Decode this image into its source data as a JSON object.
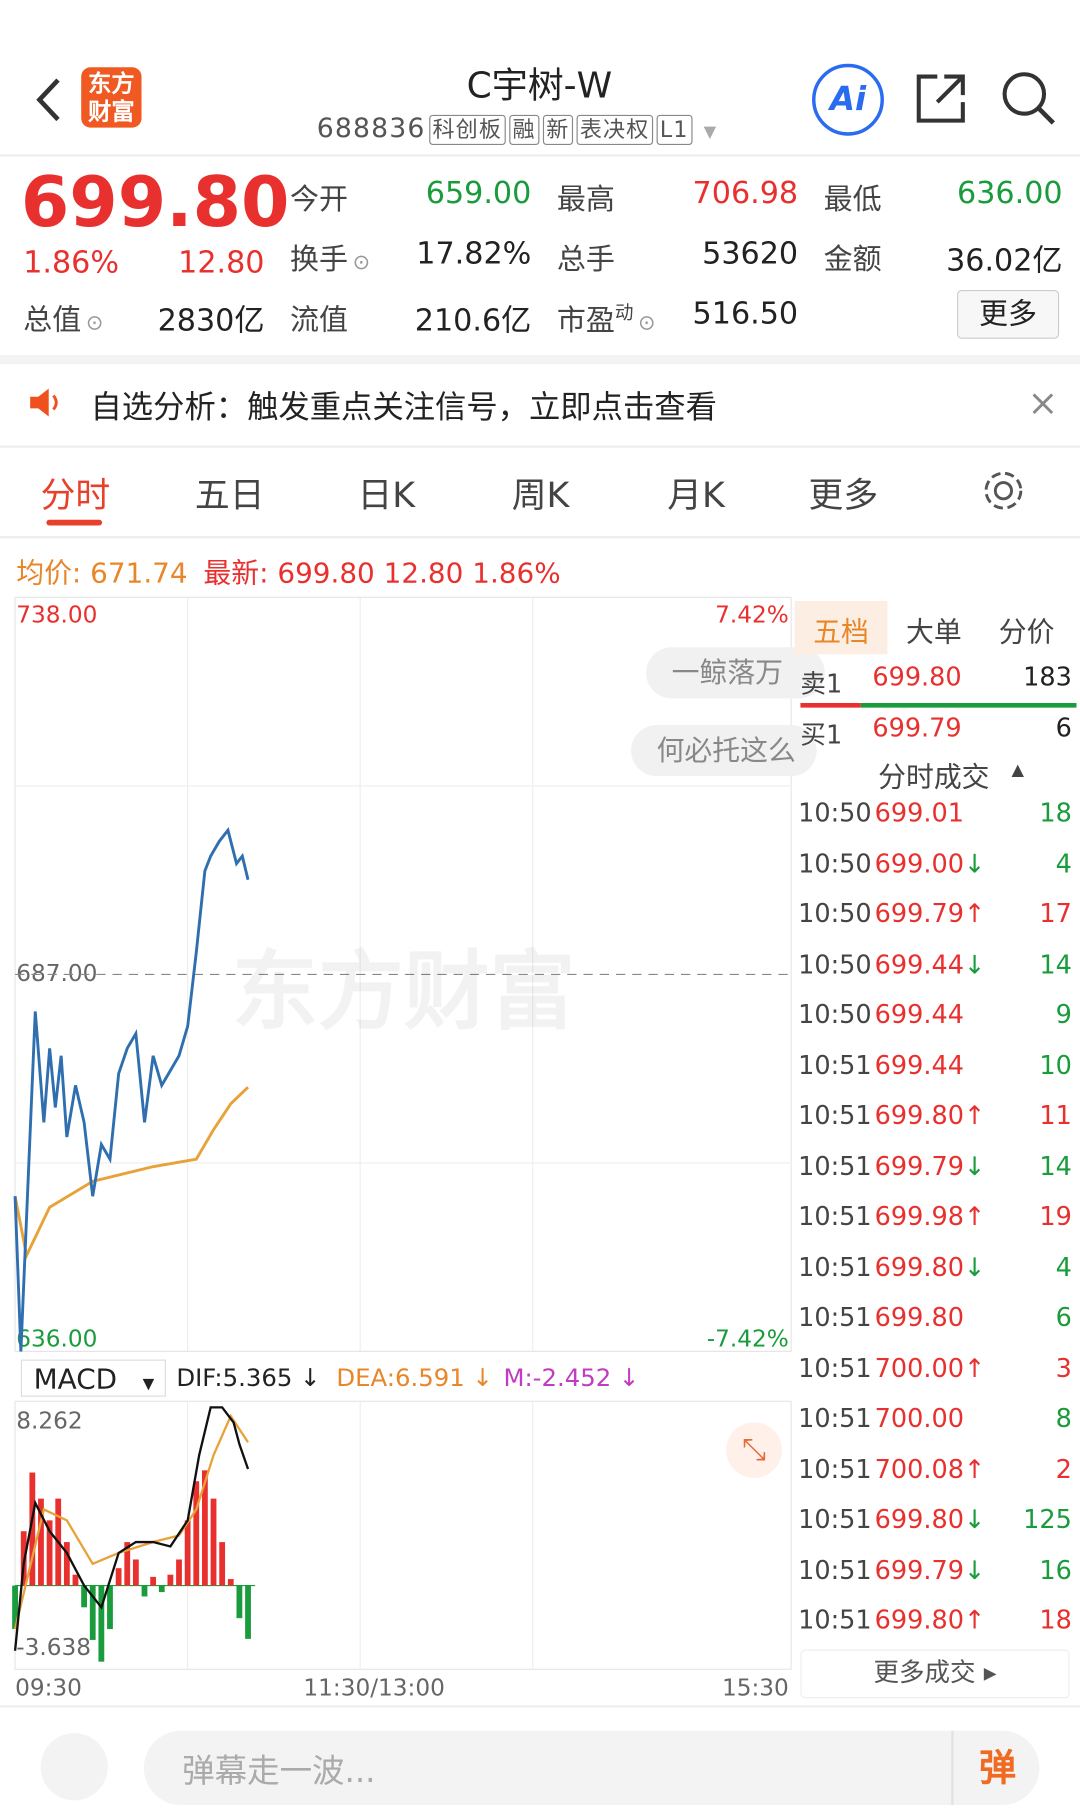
{
  "header": {
    "logo": "东方财富",
    "title": "C宇树-W",
    "code": "688836",
    "tags": [
      "科创板",
      "融",
      "新",
      "表决权",
      "L1"
    ],
    "ai": "Ai"
  },
  "quote": {
    "price": "699.80",
    "change_pct": "1.86%",
    "change": "12.80",
    "total_value_label": "总值",
    "total_value": "2830亿",
    "fields": [
      {
        "label": "今开",
        "value": "659.00",
        "color": "green"
      },
      {
        "label": "最高",
        "value": "706.98",
        "color": "red"
      },
      {
        "label": "最低",
        "value": "636.00",
        "color": "green"
      },
      {
        "label": "换手",
        "value": "17.82%",
        "color": "black"
      },
      {
        "label": "总手",
        "value": "53620",
        "color": "black"
      },
      {
        "label": "金额",
        "value": "36.02亿",
        "color": "black"
      },
      {
        "label": "流值",
        "value": "210.6亿",
        "color": "black"
      },
      {
        "label": "市盈",
        "sup": "动",
        "value": "516.50",
        "color": "black"
      }
    ],
    "more": "更多"
  },
  "notice": "自选分析：触发重点关注信号，立即点击查看",
  "tabs": [
    "分时",
    "五日",
    "日K",
    "周K",
    "月K",
    "更多"
  ],
  "info": {
    "avg_label": "均价:",
    "avg": "671.74",
    "last_label": "最新:",
    "last": "699.80",
    "change": "12.80",
    "change_pct": "1.86%"
  },
  "intraday": {
    "xlim": [
      0,
      240
    ],
    "xticks": [
      {
        "value": 0,
        "label": "09:30"
      },
      {
        "value": 120,
        "label": "11:30/13:00"
      },
      {
        "value": 240,
        "label": "15:30"
      }
    ],
    "ylim": [
      636,
      738
    ],
    "yticks": [
      {
        "value": 738,
        "label": "738.00"
      },
      {
        "value": 687,
        "label": "687.00"
      },
      {
        "value": 636,
        "label": "636.00"
      }
    ],
    "right_labels": [
      {
        "value": 738,
        "label": "7.42%"
      },
      {
        "value": 636,
        "label": "-7.42%"
      }
    ],
    "price": {
      "color": "#2f6fb0",
      "x": [
        0,
        2,
        7,
        10,
        12,
        14,
        16,
        18,
        21,
        24,
        27,
        30,
        33,
        36,
        39,
        42,
        45,
        48,
        51,
        54,
        57,
        60,
        63,
        66,
        68,
        71,
        74,
        77,
        79,
        81
      ],
      "values": [
        657,
        636,
        682,
        667,
        677,
        669,
        676,
        665,
        672,
        667,
        657,
        664,
        662,
        673.6,
        677,
        679,
        667,
        676,
        672,
        674,
        676,
        680,
        690,
        701,
        703,
        705,
        706.5,
        702,
        703,
        699.8
      ]
    },
    "avg": {
      "color": "#e8a23a",
      "x": [
        0,
        4,
        12,
        27,
        48,
        63,
        69,
        75,
        81
      ],
      "values": [
        657,
        649,
        655.5,
        659,
        661,
        662,
        666,
        669.5,
        671.74
      ]
    },
    "bubbles": [
      "一鲸落万",
      "何必托这么"
    ],
    "watermark": "东方财富"
  },
  "macd": {
    "selector": "MACD",
    "dif_label": "DIF:5.365 ↓",
    "dea_label": "DEA:6.591 ↓",
    "m_label": "M:-2.452 ↓",
    "ylim": [
      -3.638,
      8.262
    ],
    "yticks": [
      {
        "value": 8.262,
        "label": "8.262"
      },
      {
        "value": -3.638,
        "label": "-3.638"
      }
    ],
    "hist": {
      "x": [
        0,
        3,
        6,
        9,
        12,
        15,
        18,
        21,
        24,
        27,
        30,
        33,
        36,
        39,
        42,
        45,
        48,
        51,
        54,
        57,
        60,
        63,
        66,
        69,
        72,
        75,
        78,
        81
      ],
      "values": [
        -2.0,
        2.5,
        5.2,
        4.0,
        3.0,
        4.0,
        2.0,
        0.5,
        -1.0,
        -2.5,
        -3.5,
        -2.0,
        0.8,
        2.0,
        1.2,
        -0.5,
        0.4,
        -0.3,
        0.5,
        1.2,
        3.0,
        4.8,
        5.3,
        4.0,
        2.0,
        0.3,
        -1.5,
        -2.452
      ]
    },
    "dif": {
      "color": "#111111",
      "x": [
        0,
        3,
        7,
        12,
        18,
        24,
        30,
        36,
        42,
        48,
        54,
        60,
        64,
        68,
        72,
        76,
        78,
        81
      ],
      "values": [
        -3,
        1,
        3.8,
        2.5,
        1.5,
        0,
        -1,
        1.5,
        2,
        2,
        1.8,
        3,
        6,
        8.2,
        8.2,
        7.5,
        6.5,
        5.365
      ]
    },
    "dea": {
      "color": "#e8a23a",
      "x": [
        0,
        10,
        18,
        27,
        36,
        48,
        57,
        63,
        69,
        75,
        81
      ],
      "values": [
        -2,
        3.5,
        3,
        1,
        1.5,
        2,
        2.3,
        3.5,
        6,
        7.8,
        6.591
      ]
    }
  },
  "side": {
    "tabs": [
      "五档",
      "大单",
      "分价"
    ],
    "book": [
      {
        "side": "卖1",
        "price": "699.80",
        "volume": "183"
      },
      {
        "side": "买1",
        "price": "699.79",
        "volume": "6"
      }
    ],
    "trades_title": "分时成交",
    "trades": [
      {
        "time": "10:50",
        "price": "699.01",
        "volume": "18"
      },
      {
        "time": "10:50",
        "price": "699.00",
        "arrow": "↓",
        "volume": "4"
      },
      {
        "time": "10:50",
        "price": "699.79",
        "arrow": "↑",
        "volume": "17"
      },
      {
        "time": "10:50",
        "price": "699.44",
        "arrow": "↓",
        "volume": "14"
      },
      {
        "time": "10:50",
        "price": "699.44",
        "volume": "9"
      },
      {
        "time": "10:51",
        "price": "699.44",
        "volume": "10"
      },
      {
        "time": "10:51",
        "price": "699.80",
        "arrow": "↑",
        "volume": "11"
      },
      {
        "time": "10:51",
        "price": "699.79",
        "arrow": "↓",
        "volume": "14"
      },
      {
        "time": "10:51",
        "price": "699.98",
        "arrow": "↑",
        "volume": "19"
      },
      {
        "time": "10:51",
        "price": "699.80",
        "arrow": "↓",
        "volume": "4"
      },
      {
        "time": "10:51",
        "price": "699.80",
        "volume": "6"
      },
      {
        "time": "10:51",
        "price": "700.00",
        "arrow": "↑",
        "volume": "3"
      },
      {
        "time": "10:51",
        "price": "700.00",
        "volume": "8"
      },
      {
        "time": "10:51",
        "price": "700.08",
        "arrow": "↑",
        "volume": "2"
      },
      {
        "time": "10:51",
        "price": "699.80",
        "arrow": "↓",
        "volume": "125"
      },
      {
        "time": "10:51",
        "price": "699.79",
        "arrow": "↓",
        "volume": "16"
      },
      {
        "time": "10:51",
        "price": "699.80",
        "arrow": "↑",
        "volume": "18"
      }
    ],
    "more": "更多成交"
  },
  "bottom": {
    "placeholder": "弹幕走一波...",
    "button": "弹"
  }
}
